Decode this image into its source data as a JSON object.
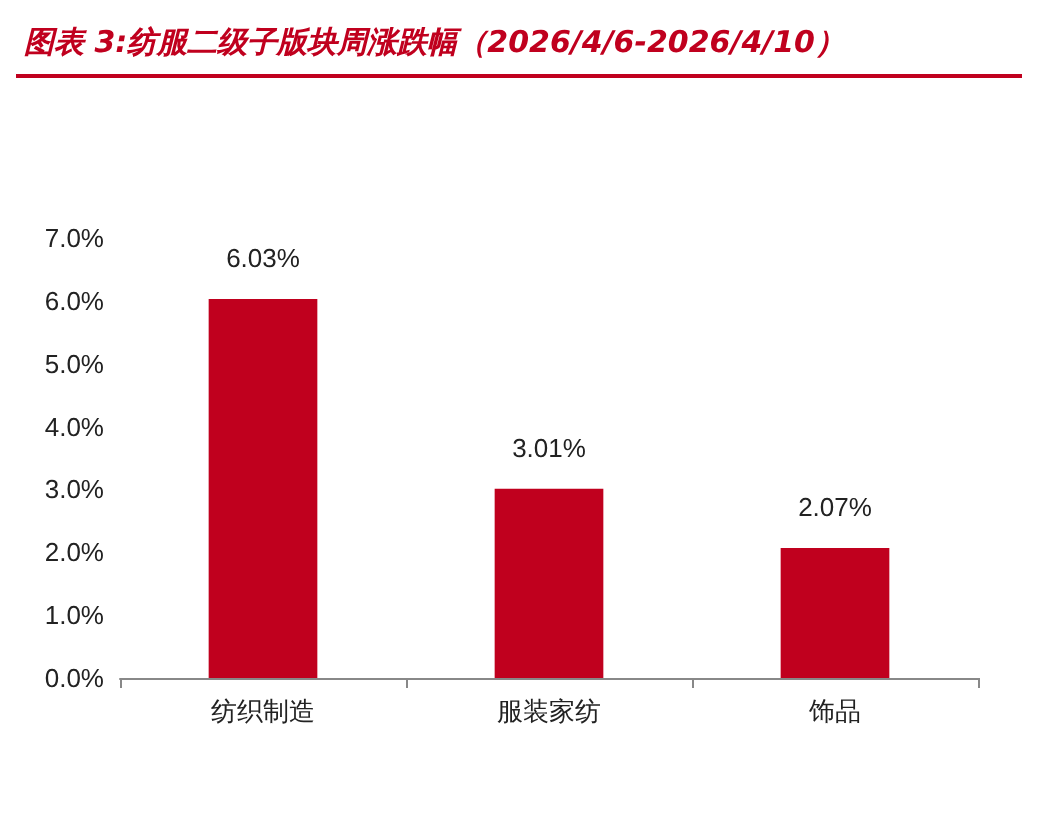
{
  "chart_data": {
    "type": "bar",
    "title": "图表 3:纺服二级子版块周涨跌幅（2026/4/6-2026/4/10）",
    "categories": [
      "纺织制造",
      "服装家纺",
      "饰品"
    ],
    "values": [
      6.03,
      3.01,
      2.07
    ],
    "value_labels": [
      "6.03%",
      "3.01%",
      "2.07%"
    ],
    "color": "#c0001e",
    "ylim": [
      0,
      7
    ],
    "yticks": [
      {
        "value": 0,
        "label": "0.0%"
      },
      {
        "value": 1,
        "label": "1.0%"
      },
      {
        "value": 2,
        "label": "2.0%"
      },
      {
        "value": 3,
        "label": "3.0%"
      },
      {
        "value": 4,
        "label": "4.0%"
      },
      {
        "value": 5,
        "label": "5.0%"
      },
      {
        "value": 6,
        "label": "6.0%"
      },
      {
        "value": 7,
        "label": "7.0%"
      }
    ],
    "grid": false
  }
}
